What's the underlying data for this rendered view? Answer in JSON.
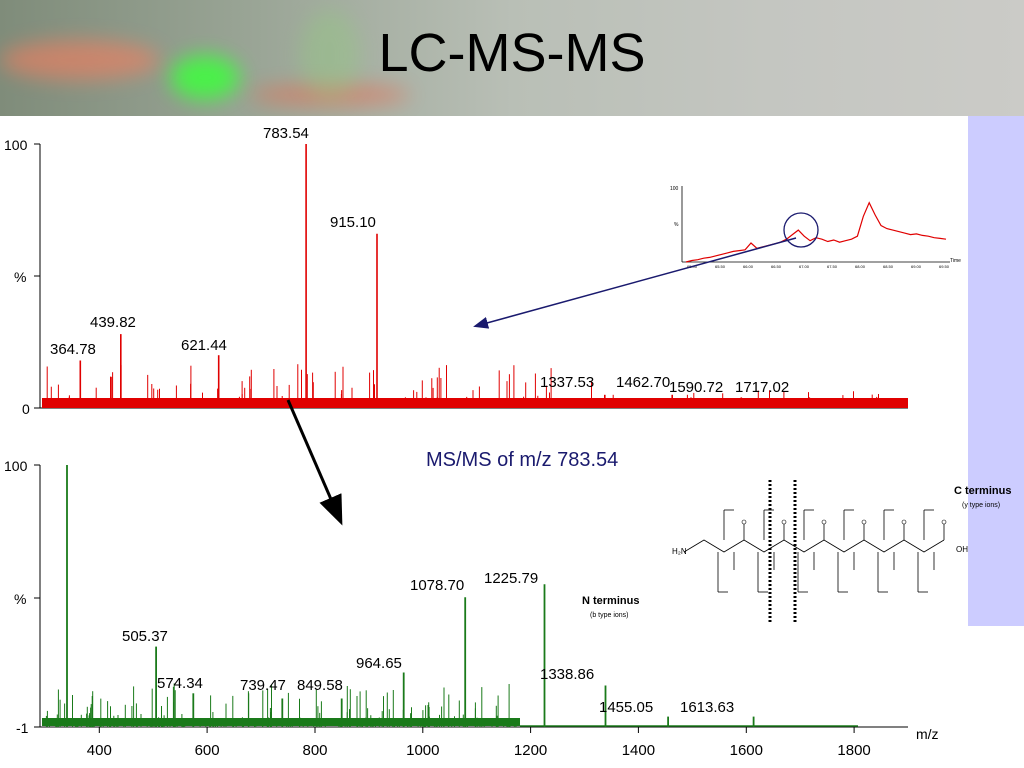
{
  "title": "LC-MS-MS",
  "colors": {
    "ms1": "#e00000",
    "ms2": "#1a7a1a",
    "arrow": "#1a1a6e",
    "panel": "#ccccff"
  },
  "chart_data": [
    {
      "type": "bar",
      "name": "ms1-spectrum",
      "yticks": [
        "100",
        "%",
        "0"
      ],
      "ylim": [
        0,
        100
      ],
      "xlim": [
        290,
        1900
      ],
      "peaks": [
        {
          "x": 783.54,
          "y": 100,
          "label": "783.54"
        },
        {
          "x": 915.1,
          "y": 66,
          "label": "915.10"
        },
        {
          "x": 439.82,
          "y": 28,
          "label": "439.82"
        },
        {
          "x": 364.78,
          "y": 18,
          "label": "364.78"
        },
        {
          "x": 621.44,
          "y": 20,
          "label": "621.44"
        },
        {
          "x": 1337.53,
          "y": 5,
          "label": "1337.53"
        },
        {
          "x": 1462.7,
          "y": 5,
          "label": "1462.70"
        },
        {
          "x": 1590.72,
          "y": 4,
          "label": "1590.72"
        },
        {
          "x": 1717.02,
          "y": 4,
          "label": "1717.02"
        }
      ]
    },
    {
      "type": "bar",
      "name": "ms2-spectrum",
      "title": "MS/MS of m/z 783.54",
      "xlabel": "m/z",
      "yticks": [
        "100",
        "%",
        "-1"
      ],
      "ylim": [
        -1,
        100
      ],
      "xlim": [
        290,
        1900
      ],
      "xticks": [
        400,
        600,
        800,
        1000,
        1200,
        1400,
        1600,
        1800
      ],
      "peaks": [
        {
          "x": 340,
          "y": 100,
          "label": ""
        },
        {
          "x": 505.37,
          "y": 30,
          "label": "505.37"
        },
        {
          "x": 574.34,
          "y": 12,
          "label": "574.34"
        },
        {
          "x": 739.47,
          "y": 10,
          "label": "739.47"
        },
        {
          "x": 849.58,
          "y": 10,
          "label": "849.58"
        },
        {
          "x": 964.65,
          "y": 20,
          "label": "964.65"
        },
        {
          "x": 1078.7,
          "y": 49,
          "label": "1078.70"
        },
        {
          "x": 1225.79,
          "y": 54,
          "label": "1225.79"
        },
        {
          "x": 1338.86,
          "y": 15,
          "label": "1338.86"
        },
        {
          "x": 1455.05,
          "y": 3,
          "label": "1455.05"
        },
        {
          "x": 1613.63,
          "y": 3,
          "label": "1613.63"
        }
      ]
    },
    {
      "type": "line",
      "name": "chromatogram-inset",
      "ytick_labels": [
        "100",
        "%"
      ],
      "xtick_labels": [
        "65.00",
        "65.50",
        "66.00",
        "66.50",
        "67.00",
        "67.50",
        "68.00",
        "68.50",
        "69.00",
        "69.50"
      ],
      "xlabel": "Time",
      "y": [
        0,
        2,
        3,
        5,
        6,
        8,
        10,
        12,
        14,
        15,
        16,
        25,
        18,
        20,
        22,
        24,
        26,
        30,
        36,
        42,
        34,
        28,
        32,
        30,
        27,
        29,
        26,
        28,
        30,
        34,
        60,
        78,
        62,
        48,
        44,
        42,
        40,
        38,
        36,
        37,
        35,
        34,
        32,
        31,
        30
      ]
    }
  ],
  "structure": {
    "c_terminus": "C terminus",
    "c_terminus_sub": "(y type ions)",
    "n_terminus": "N terminus",
    "n_terminus_sub": "(b type ions)",
    "n_end": "H₂N",
    "c_end": "OH"
  }
}
